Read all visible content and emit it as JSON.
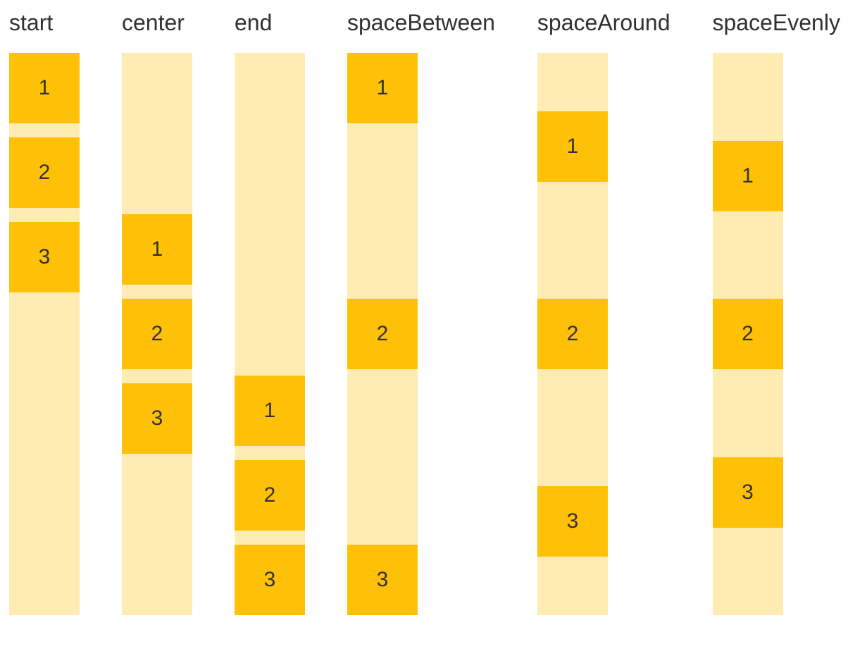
{
  "colors": {
    "background": "#FFFFFF",
    "track": "#FFECB3",
    "box": "#FFC107",
    "text": "#323130"
  },
  "columns": [
    {
      "label": "start",
      "justify": "flex-start",
      "items": [
        "1",
        "2",
        "3"
      ]
    },
    {
      "label": "center",
      "justify": "center",
      "items": [
        "1",
        "2",
        "3"
      ]
    },
    {
      "label": "end",
      "justify": "flex-end",
      "items": [
        "1",
        "2",
        "3"
      ]
    },
    {
      "label": "spaceBetween",
      "justify": "space-between",
      "items": [
        "1",
        "2",
        "3"
      ]
    },
    {
      "label": "spaceAround",
      "justify": "space-around",
      "items": [
        "1",
        "2",
        "3"
      ]
    },
    {
      "label": "spaceEvenly",
      "justify": "space-evenly",
      "items": [
        "1",
        "2",
        "3"
      ]
    }
  ]
}
